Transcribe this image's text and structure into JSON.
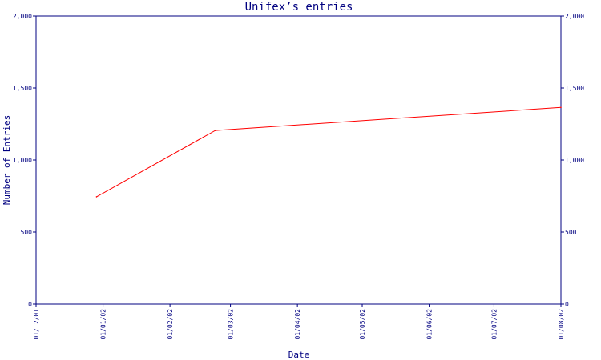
{
  "chart_data": {
    "type": "line",
    "title": "Unifex’s entries",
    "xlabel": "Date",
    "ylabel": "Number of Entries",
    "x_tick_labels": [
      "01/12/01",
      "01/01/02",
      "01/02/02",
      "01/03/02",
      "01/04/02",
      "01/05/02",
      "01/06/02",
      "01/07/02",
      "01/08/02"
    ],
    "x_tick_dates": [
      "2001-12-01",
      "2002-01-01",
      "2002-02-01",
      "2002-03-01",
      "2002-04-01",
      "2002-05-01",
      "2002-06-01",
      "2002-07-01",
      "2002-08-01"
    ],
    "xlim": [
      "2001-12-01",
      "2002-08-01"
    ],
    "y_ticks": [
      0,
      500,
      1000,
      1500,
      2000
    ],
    "y_tick_labels": [
      "0",
      "500",
      "1,000",
      "1,500",
      "2,000"
    ],
    "ylim": [
      0,
      2000
    ],
    "grid": false,
    "series": [
      {
        "color": "#ff0000",
        "points": [
          {
            "x": "2001-12-29",
            "y": 745
          },
          {
            "x": "2002-02-22",
            "y": 1205
          },
          {
            "x": "2002-08-01",
            "y": 1365
          }
        ]
      }
    ]
  }
}
